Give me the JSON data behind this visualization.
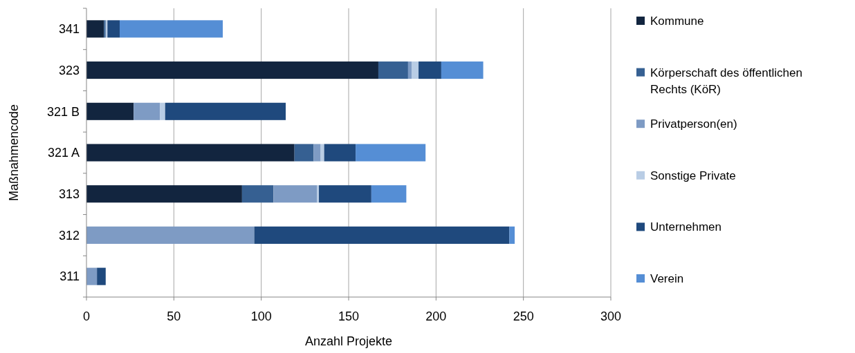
{
  "chart_data": {
    "type": "bar",
    "orientation": "horizontal",
    "stacked": true,
    "xlabel": "Anzahl Projekte",
    "ylabel": "Maßnahmencode",
    "categories": [
      "341",
      "323",
      "321 B",
      "321 A",
      "313",
      "312",
      "311"
    ],
    "series": [
      {
        "name": "Kommune",
        "color": "#12253f",
        "values": [
          10,
          167,
          27,
          119,
          89,
          0,
          0
        ]
      },
      {
        "name": "Körperschaft des öffentlichen Rechts (KöR)",
        "color": "#366092",
        "values": [
          1,
          17,
          0,
          11,
          18,
          0,
          0
        ]
      },
      {
        "name": "Privatperson(en)",
        "color": "#7e9bc4",
        "values": [
          0,
          2,
          15,
          4,
          25,
          96,
          6
        ]
      },
      {
        "name": "Sonstige Private",
        "color": "#b9cde5",
        "values": [
          1,
          4,
          3,
          2,
          1,
          0,
          0
        ]
      },
      {
        "name": "Unternehmen",
        "color": "#1f497d",
        "values": [
          7,
          13,
          69,
          18,
          30,
          146,
          5
        ]
      },
      {
        "name": "Verein",
        "color": "#558ed5",
        "values": [
          59,
          24,
          0,
          40,
          20,
          3,
          0
        ]
      }
    ],
    "xlim": [
      0,
      300
    ],
    "xticks": [
      0,
      50,
      100,
      150,
      200,
      250,
      300
    ],
    "grid": "x",
    "legend": "right"
  }
}
